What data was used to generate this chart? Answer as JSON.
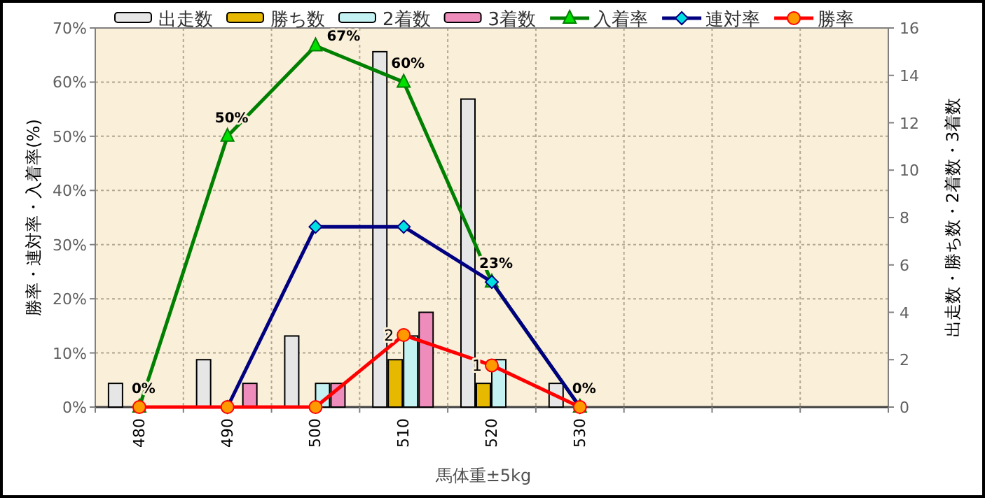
{
  "chart_data": {
    "type": "bar",
    "xlabel": "馬体重±5kg",
    "ylabel": "勝率・連対率・入着率(%)",
    "y2label": "出走数・勝ち数・2着数・3着数",
    "categories": [
      "480",
      "490",
      "500",
      "510",
      "520",
      "530",
      null,
      null,
      null
    ],
    "series": [
      {
        "name": "出走数",
        "axis": "y2",
        "color": "#e6e6e6",
        "values": [
          1,
          2,
          3,
          15,
          13,
          1,
          null,
          null,
          null
        ]
      },
      {
        "name": "勝ち数",
        "axis": "y2",
        "color": "#e6b800",
        "values": [
          0,
          0,
          0,
          2,
          1,
          0,
          null,
          null,
          null
        ]
      },
      {
        "name": "2着数",
        "axis": "y2",
        "color": "#c4f2f2",
        "values": [
          0,
          0,
          1,
          3,
          2,
          0,
          null,
          null,
          null
        ]
      },
      {
        "name": "3着数",
        "axis": "y2",
        "color": "#ee8cbc",
        "values": [
          0,
          1,
          1,
          4,
          0,
          0,
          null,
          null,
          null
        ]
      },
      {
        "name": "入着率",
        "type": "line",
        "color": "#008000",
        "marker": "triangle",
        "values": [
          0,
          50,
          66.7,
          60,
          23.1,
          0,
          null,
          null,
          null
        ],
        "value_labels": [
          "0%",
          "50%",
          "67%",
          "60%",
          "23%",
          "0%",
          null,
          null,
          null
        ]
      },
      {
        "name": "連対率",
        "type": "line",
        "color": "#000080",
        "marker": "diamond",
        "values": [
          null,
          0,
          33.3,
          33.3,
          23.1,
          0,
          null,
          null,
          null
        ]
      },
      {
        "name": "勝率",
        "type": "line",
        "color": "#ff0000",
        "marker": "circle",
        "values": [
          0,
          0,
          0,
          13.3,
          7.7,
          0,
          null,
          null,
          null
        ]
      }
    ],
    "ylim": [
      0,
      70
    ],
    "yticks": [
      {
        "value": 0,
        "label": "0%"
      },
      {
        "value": 10,
        "label": "10%"
      },
      {
        "value": 20,
        "label": "20%"
      },
      {
        "value": 30,
        "label": "30%"
      },
      {
        "value": 40,
        "label": "40%"
      },
      {
        "value": 50,
        "label": "50%"
      },
      {
        "value": 60,
        "label": "60%"
      },
      {
        "value": 70,
        "label": "70%"
      }
    ],
    "y2lim": [
      0,
      16
    ],
    "y2ticks": [
      0,
      2,
      4,
      6,
      8,
      10,
      12,
      14,
      16
    ],
    "annotations": [
      {
        "text": "2",
        "x": "510",
        "y": 13.3
      },
      {
        "text": "1",
        "x": "520",
        "y": 7.7
      }
    ],
    "grid": true,
    "legend": "top"
  }
}
